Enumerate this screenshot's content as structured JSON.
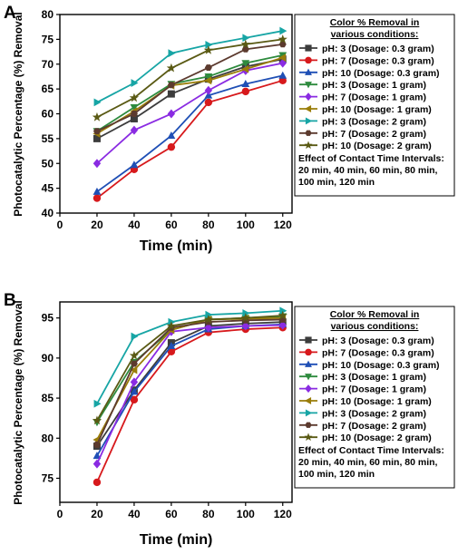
{
  "colors": {
    "pH3_0.3": "#3c3c3c",
    "pH7_0.3": "#d7191c",
    "pH10_0.3": "#1f4fb5",
    "pH3_1": "#2e8b3e",
    "pH7_1": "#8a2be2",
    "pH10_1": "#9a7d0a",
    "pH3_2": "#17a5a5",
    "pH7_2": "#5c3a2e",
    "pH10_2": "#5a5a14"
  },
  "chart_data": [
    {
      "panel": "A",
      "type": "line",
      "xlabel": "Time (min)",
      "ylabel": "Photocatalytic Percentage (%) Removal",
      "xlim": [
        0,
        125
      ],
      "ylim": [
        40,
        80
      ],
      "xticks": [
        "0",
        "20",
        "40",
        "60",
        "80",
        "100",
        "120"
      ],
      "yticks": [
        "40",
        "45",
        "50",
        "55",
        "60",
        "65",
        "70",
        "75",
        "80"
      ],
      "x": [
        20,
        40,
        60,
        80,
        100,
        120
      ],
      "legend_title": "Color % Removal in various conditions:",
      "legend_note": [
        "Effect of Contact Time Intervals:",
        "20 min, 40 min, 60 min, 80 min,",
        "100 min, 120 min"
      ],
      "series": [
        {
          "name": "pH: 3 (Dosage: 0.3 gram)",
          "color_key": "pH3_0.3",
          "marker": "square",
          "values": [
            55.0,
            59.0,
            64.0,
            67.0,
            69.5,
            71.0
          ]
        },
        {
          "name": "pH: 7 (Dosage: 0.3 gram)",
          "color_key": "pH7_0.3",
          "marker": "circle",
          "values": [
            43.0,
            48.8,
            53.3,
            62.3,
            64.5,
            66.7
          ]
        },
        {
          "name": "pH: 10 (Dosage: 0.3 gram)",
          "color_key": "pH10_0.3",
          "marker": "triangle-up",
          "values": [
            44.3,
            49.7,
            55.6,
            63.7,
            66.0,
            67.7
          ]
        },
        {
          "name": "pH: 3 (Dosage: 1 gram)",
          "color_key": "pH3_1",
          "marker": "triangle-down",
          "values": [
            56.5,
            61.3,
            66.0,
            67.5,
            70.2,
            71.8
          ]
        },
        {
          "name": "pH: 7 (Dosage: 1 gram)",
          "color_key": "pH7_1",
          "marker": "diamond",
          "values": [
            50.0,
            56.7,
            60.0,
            64.7,
            68.7,
            70.2
          ]
        },
        {
          "name": "pH: 10 (Dosage: 1 gram)",
          "color_key": "pH10_1",
          "marker": "triangle-left",
          "values": [
            56.0,
            60.5,
            65.7,
            66.7,
            69.0,
            71.3
          ]
        },
        {
          "name": "pH: 3 (Dosage: 2 gram)",
          "color_key": "pH3_2",
          "marker": "triangle-right",
          "values": [
            62.3,
            66.2,
            72.2,
            73.9,
            75.3,
            76.7
          ]
        },
        {
          "name": "pH: 7 (Dosage: 2 gram)",
          "color_key": "pH7_2",
          "marker": "hexagon",
          "values": [
            56.5,
            60.0,
            65.8,
            69.3,
            73.0,
            74.0
          ]
        },
        {
          "name": "pH: 10 (Dosage: 2 gram)",
          "color_key": "pH10_2",
          "marker": "star",
          "values": [
            59.3,
            63.2,
            69.2,
            72.8,
            74.0,
            75.0
          ]
        }
      ]
    },
    {
      "panel": "B",
      "type": "line",
      "xlabel": "Time (min)",
      "ylabel": "Photocatalytic Percentage (%) Removal",
      "xlim": [
        0,
        125
      ],
      "ylim": [
        72,
        97
      ],
      "xticks": [
        "0",
        "20",
        "40",
        "60",
        "80",
        "100",
        "120"
      ],
      "yticks": [
        "75",
        "80",
        "85",
        "90",
        "95"
      ],
      "x": [
        20,
        40,
        60,
        80,
        100,
        120
      ],
      "legend_title": "Color % Removal in various conditions:",
      "legend_note": [
        "Effect of Contact Time Intervals:",
        "20 min, 40 min, 60 min, 80 min,",
        "100 min, 120 min"
      ],
      "series": [
        {
          "name": "pH: 3 (Dosage: 0.3 gram)",
          "color_key": "pH3_0.3",
          "marker": "square",
          "values": [
            79.0,
            86.0,
            91.9,
            94.0,
            94.3,
            94.5
          ]
        },
        {
          "name": "pH: 7 (Dosage: 0.3 gram)",
          "color_key": "pH7_0.3",
          "marker": "circle",
          "values": [
            74.5,
            84.8,
            90.8,
            93.2,
            93.6,
            93.8
          ]
        },
        {
          "name": "pH: 10 (Dosage: 0.3 gram)",
          "color_key": "pH10_0.3",
          "marker": "triangle-up",
          "values": [
            77.8,
            85.8,
            91.5,
            93.6,
            94.0,
            94.2
          ]
        },
        {
          "name": "pH: 3 (Dosage: 1 gram)",
          "color_key": "pH3_1",
          "marker": "triangle-down",
          "values": [
            82.0,
            89.5,
            93.5,
            94.8,
            95.0,
            95.2
          ]
        },
        {
          "name": "pH: 7 (Dosage: 1 gram)",
          "color_key": "pH7_1",
          "marker": "diamond",
          "values": [
            76.8,
            87.0,
            93.3,
            93.8,
            94.0,
            94.1
          ]
        },
        {
          "name": "pH: 10 (Dosage: 1 gram)",
          "color_key": "pH10_1",
          "marker": "triangle-left",
          "values": [
            79.8,
            88.5,
            93.5,
            94.8,
            94.9,
            95.0
          ]
        },
        {
          "name": "pH: 3 (Dosage: 2 gram)",
          "color_key": "pH3_2",
          "marker": "triangle-right",
          "values": [
            84.3,
            92.7,
            94.5,
            95.4,
            95.6,
            95.9
          ]
        },
        {
          "name": "pH: 7 (Dosage: 2 gram)",
          "color_key": "pH7_2",
          "marker": "hexagon",
          "values": [
            79.2,
            89.3,
            93.8,
            94.5,
            94.7,
            94.8
          ]
        },
        {
          "name": "pH: 10 (Dosage: 2 gram)",
          "color_key": "pH10_2",
          "marker": "star",
          "values": [
            82.2,
            90.3,
            94.0,
            94.8,
            95.0,
            95.3
          ]
        }
      ]
    }
  ]
}
